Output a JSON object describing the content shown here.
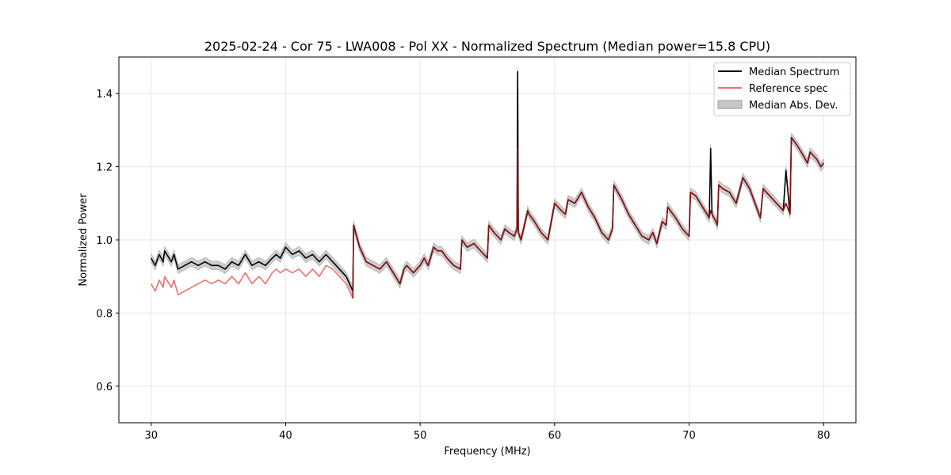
{
  "chart_data": {
    "type": "line",
    "title": "2025-02-24 - Cor 75 - LWA008 - Pol XX - Normalized Spectrum (Median power=15.8 CPU)",
    "xlabel": "Frequency (MHz)",
    "ylabel": "Normalized Power",
    "xlim": [
      27.6,
      82.4
    ],
    "ylim": [
      0.5,
      1.5
    ],
    "xticks": [
      30,
      40,
      50,
      60,
      70,
      80
    ],
    "yticks": [
      0.6,
      0.8,
      1.0,
      1.2,
      1.4
    ],
    "xtick_labels": [
      "30",
      "40",
      "50",
      "60",
      "70",
      "80"
    ],
    "ytick_labels": [
      "0.6",
      "0.8",
      "1.0",
      "1.2",
      "1.4"
    ],
    "grid": true,
    "legend_position": "top-right",
    "legend": [
      "Median Spectrum",
      "Reference spec",
      "Median Abs. Dev."
    ],
    "colors": {
      "median": "#000000",
      "reference": "#f07070",
      "reference_overlap": "#8b1010",
      "mad_fill": "#c8c8c8"
    },
    "series": [
      {
        "name": "Median Spectrum",
        "x": [
          30.0,
          30.3,
          30.6,
          30.9,
          31.0,
          31.5,
          31.7,
          32.0,
          32.5,
          33.0,
          33.5,
          34.0,
          34.5,
          35.0,
          35.5,
          36.0,
          36.5,
          37.0,
          37.5,
          38.0,
          38.5,
          39.0,
          39.3,
          39.6,
          40.0,
          40.5,
          41.0,
          41.5,
          42.0,
          42.5,
          43.0,
          43.5,
          44.0,
          44.5,
          45.0,
          45.05,
          45.2,
          45.5,
          46.0,
          46.5,
          47.0,
          47.5,
          48.0,
          48.5,
          48.8,
          49.0,
          49.5,
          50.0,
          50.3,
          50.6,
          51.0,
          51.3,
          51.6,
          52.0,
          52.5,
          53.0,
          53.1,
          53.5,
          54.0,
          54.5,
          55.0,
          55.1,
          55.5,
          56.0,
          56.3,
          56.6,
          57.0,
          57.2,
          57.25,
          57.3,
          57.5,
          58.0,
          58.1,
          58.5,
          59.0,
          59.5,
          60.0,
          60.5,
          60.8,
          61.0,
          61.5,
          62.0,
          62.5,
          63.0,
          63.5,
          64.0,
          64.3,
          64.4,
          65.0,
          65.5,
          66.0,
          66.5,
          67.0,
          67.3,
          67.6,
          68.0,
          68.3,
          68.4,
          69.0,
          69.5,
          70.0,
          70.1,
          70.5,
          71.0,
          71.5,
          71.6,
          71.7,
          72.0,
          72.1,
          72.2,
          72.5,
          73.0,
          73.5,
          74.0,
          74.5,
          75.0,
          75.3,
          75.5,
          76.0,
          76.5,
          77.0,
          77.2,
          77.5,
          77.6,
          78.0,
          78.5,
          78.8,
          79.0,
          79.5,
          79.8,
          80.0
        ],
        "y": [
          0.95,
          0.93,
          0.96,
          0.94,
          0.97,
          0.94,
          0.96,
          0.92,
          0.93,
          0.94,
          0.93,
          0.94,
          0.93,
          0.93,
          0.92,
          0.94,
          0.93,
          0.96,
          0.93,
          0.94,
          0.93,
          0.95,
          0.96,
          0.95,
          0.98,
          0.96,
          0.97,
          0.95,
          0.96,
          0.94,
          0.96,
          0.94,
          0.92,
          0.9,
          0.86,
          1.04,
          1.02,
          0.98,
          0.94,
          0.93,
          0.92,
          0.94,
          0.91,
          0.88,
          0.92,
          0.93,
          0.91,
          0.93,
          0.95,
          0.93,
          0.98,
          0.97,
          0.97,
          0.95,
          0.93,
          0.92,
          1.0,
          0.98,
          0.99,
          0.97,
          0.95,
          1.04,
          1.02,
          1.0,
          1.03,
          1.02,
          1.01,
          1.03,
          1.46,
          1.02,
          1.0,
          1.08,
          1.07,
          1.05,
          1.02,
          1.0,
          1.1,
          1.08,
          1.07,
          1.11,
          1.1,
          1.13,
          1.09,
          1.06,
          1.02,
          1.0,
          1.03,
          1.15,
          1.11,
          1.07,
          1.04,
          1.01,
          1.0,
          1.02,
          0.99,
          1.05,
          1.04,
          1.09,
          1.06,
          1.03,
          1.01,
          1.13,
          1.12,
          1.09,
          1.06,
          1.25,
          1.07,
          1.05,
          1.04,
          1.15,
          1.14,
          1.13,
          1.1,
          1.17,
          1.14,
          1.09,
          1.06,
          1.14,
          1.12,
          1.1,
          1.08,
          1.19,
          1.07,
          1.28,
          1.26,
          1.23,
          1.21,
          1.24,
          1.22,
          1.2,
          1.21
        ]
      },
      {
        "name": "Reference spec",
        "x": [
          30.0,
          30.3,
          30.6,
          30.9,
          31.0,
          31.5,
          31.7,
          32.0,
          32.5,
          33.0,
          33.5,
          34.0,
          34.5,
          35.0,
          35.5,
          36.0,
          36.5,
          37.0,
          37.5,
          38.0,
          38.5,
          39.0,
          39.3,
          39.6,
          40.0,
          40.5,
          41.0,
          41.5,
          42.0,
          42.5,
          43.0,
          43.5,
          44.0,
          44.5,
          45.0,
          45.05,
          45.2,
          45.5,
          46.0,
          46.5,
          47.0,
          47.5,
          48.0,
          48.5,
          48.8,
          49.0,
          49.5,
          50.0,
          50.3,
          50.6,
          51.0,
          51.3,
          51.6,
          52.0,
          52.5,
          53.0,
          53.1,
          53.5,
          54.0,
          54.5,
          55.0,
          55.1,
          55.5,
          56.0,
          56.3,
          56.6,
          57.0,
          57.2,
          57.25,
          57.3,
          57.5,
          58.0,
          58.1,
          58.5,
          59.0,
          59.5,
          60.0,
          60.5,
          60.8,
          61.0,
          61.5,
          62.0,
          62.5,
          63.0,
          63.5,
          64.0,
          64.3,
          64.4,
          65.0,
          65.5,
          66.0,
          66.5,
          67.0,
          67.3,
          67.6,
          68.0,
          68.3,
          68.4,
          69.0,
          69.5,
          70.0,
          70.1,
          70.5,
          71.0,
          71.5,
          71.6,
          71.7,
          72.0,
          72.1,
          72.2,
          72.5,
          73.0,
          73.5,
          74.0,
          74.5,
          75.0,
          75.3,
          75.5,
          76.0,
          76.5,
          77.0,
          77.2,
          77.5,
          77.6,
          78.0,
          78.5,
          78.8,
          79.0,
          79.5,
          79.8,
          80.0
        ],
        "y": [
          0.88,
          0.86,
          0.89,
          0.87,
          0.9,
          0.87,
          0.89,
          0.85,
          0.86,
          0.87,
          0.88,
          0.89,
          0.88,
          0.89,
          0.88,
          0.9,
          0.88,
          0.91,
          0.88,
          0.9,
          0.88,
          0.91,
          0.92,
          0.91,
          0.92,
          0.91,
          0.92,
          0.9,
          0.92,
          0.9,
          0.93,
          0.92,
          0.9,
          0.88,
          0.84,
          1.04,
          1.02,
          0.98,
          0.94,
          0.93,
          0.92,
          0.94,
          0.91,
          0.88,
          0.92,
          0.93,
          0.91,
          0.93,
          0.95,
          0.93,
          0.98,
          0.97,
          0.97,
          0.95,
          0.93,
          0.92,
          1.0,
          0.98,
          0.99,
          0.97,
          0.95,
          1.04,
          1.02,
          1.0,
          1.03,
          1.02,
          1.01,
          1.03,
          1.25,
          1.02,
          1.0,
          1.08,
          1.07,
          1.05,
          1.02,
          1.0,
          1.1,
          1.08,
          1.07,
          1.11,
          1.1,
          1.13,
          1.09,
          1.06,
          1.02,
          1.0,
          1.03,
          1.15,
          1.11,
          1.07,
          1.04,
          1.01,
          1.0,
          1.02,
          0.99,
          1.05,
          1.04,
          1.09,
          1.06,
          1.03,
          1.01,
          1.13,
          1.12,
          1.09,
          1.06,
          1.08,
          1.07,
          1.05,
          1.04,
          1.15,
          1.14,
          1.13,
          1.1,
          1.17,
          1.14,
          1.09,
          1.06,
          1.14,
          1.12,
          1.1,
          1.08,
          1.1,
          1.07,
          1.28,
          1.26,
          1.23,
          1.21,
          1.24,
          1.22,
          1.2,
          1.21
        ]
      }
    ],
    "mad_width": 0.012
  }
}
